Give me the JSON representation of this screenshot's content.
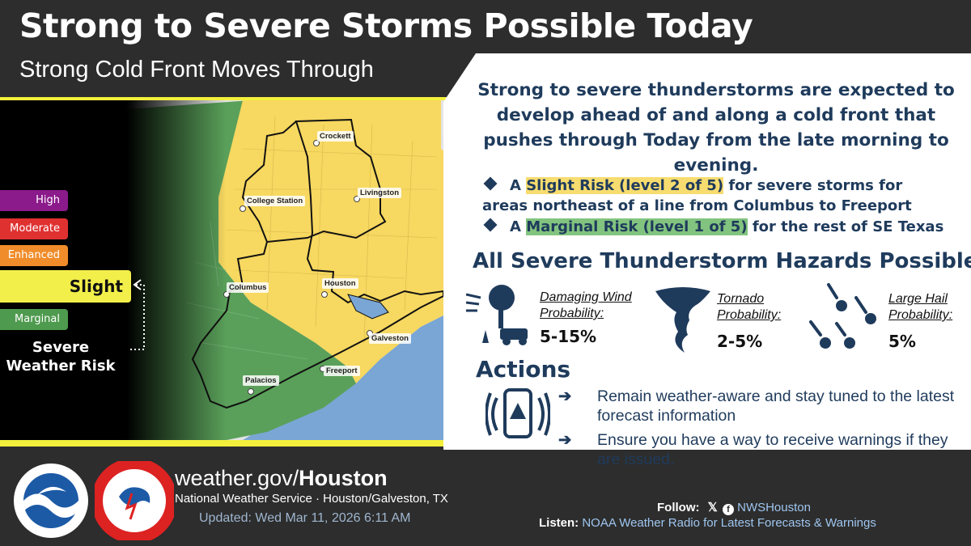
{
  "header": {
    "title": "Strong to Severe Storms Possible Today",
    "subtitle": "Strong Cold Front Moves Through"
  },
  "legend": {
    "levels": [
      {
        "label": "High",
        "color": "#8b1a8b"
      },
      {
        "label": "Moderate",
        "color": "#e03131"
      },
      {
        "label": "Enhanced",
        "color": "#f08c2a"
      },
      {
        "label": "Slight",
        "color": "#f3ef4a"
      },
      {
        "label": "Marginal",
        "color": "#4e9a4e"
      }
    ],
    "caption": "Severe Weather Risk"
  },
  "map": {
    "cities": [
      "Crockett",
      "Livingston",
      "College Station",
      "Columbus",
      "Houston",
      "Galveston",
      "Freeport",
      "Palacios"
    ]
  },
  "summary": "Strong to severe thunderstorms are expected to develop ahead of and along a cold front that pushes through Today from the late morning to evening.",
  "bullets": [
    {
      "pre": "A ",
      "highlight": "Slight Risk (level 2 of 5)",
      "post": " for severe storms for areas northeast of a line from Columbus to Freeport"
    },
    {
      "pre": "A ",
      "highlight": "Marginal Risk (level 1 of 5)",
      "post": " for the rest of SE Texas"
    }
  ],
  "hazards": {
    "title": "All Severe Thunderstorm Hazards Possible",
    "items": [
      {
        "label": "Damaging Wind Probability:",
        "value": "5-15%",
        "icon": "wind-damage-icon"
      },
      {
        "label": "Tornado Probability:",
        "value": "2-5%",
        "icon": "tornado-icon"
      },
      {
        "label": "Large Hail Probability:",
        "value": "5%",
        "icon": "hail-icon"
      }
    ]
  },
  "actions": {
    "title": "Actions",
    "items": [
      "Remain weather-aware and stay tuned to the latest forecast information",
      "Ensure you have a way to receive warnings if they are issued."
    ]
  },
  "footer": {
    "url_prefix": "weather.gov/",
    "url_bold": "Houston",
    "office": "National Weather Service · Houston/Galveston, TX",
    "updated": "Updated: Wed Mar 11, 2026 6:11 AM",
    "follow_label": "Follow:",
    "handle": "NWSHouston",
    "listen_label": "Listen:",
    "listen_text": "NOAA Weather Radio for Latest Forecasts & Warnings"
  },
  "colors": {
    "navy": "#1f3b5c",
    "slight_yellow": "#f7dc6f",
    "marginal_green": "#82c47f",
    "accent_yellow": "#f3f03c"
  }
}
